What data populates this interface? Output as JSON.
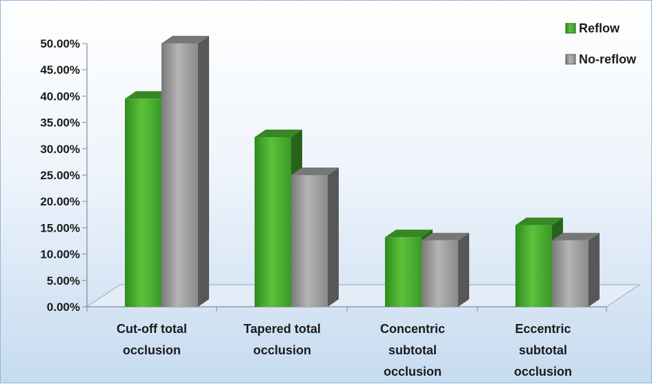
{
  "chart_data": {
    "type": "bar",
    "style": "3d-clustered-column",
    "categories": [
      [
        "Cut-off total",
        "occlusion"
      ],
      [
        "Tapered total",
        "occlusion"
      ],
      [
        "Concentric",
        "subtotal",
        "occlusion"
      ],
      [
        "Eccentric",
        "subtotal",
        "occlusion"
      ]
    ],
    "series": [
      {
        "name": "Reflow",
        "color": "#3fa02a",
        "values": [
          39.5,
          32.2,
          13.2,
          15.5
        ]
      },
      {
        "name": "No-reflow",
        "color": "#8c8c8c",
        "values": [
          50.0,
          25.0,
          12.6,
          12.6
        ]
      }
    ],
    "ylim": [
      0,
      50
    ],
    "yticks": [
      "0.00%",
      "5.00%",
      "10.00%",
      "15.00%",
      "20.00%",
      "25.00%",
      "30.00%",
      "35.00%",
      "40.00%",
      "45.00%",
      "50.00%"
    ],
    "title": "",
    "xlabel": "",
    "ylabel": "",
    "grid": false,
    "legend_position": "top-right"
  }
}
